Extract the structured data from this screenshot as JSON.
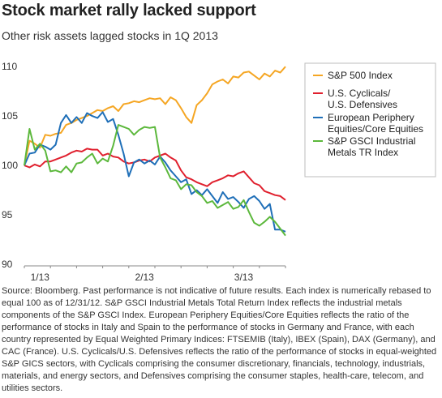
{
  "title": "Stock market rally lacked support",
  "subtitle": "Other risk assets lagged stocks in 1Q 2013",
  "source": "Source: Bloomberg. Past performance is not indicative of future results. Each index is numerically rebased to equal 100 as of 12/31/12. S&P GSCI Industrial Metals Total Return Index reflects the industrial metals components of the S&P GSCI Index. European Periphery Equities/Core Equities reflects the ratio of the performance of stocks in Italy and Spain to the performance of stocks in Germany and France, with each country represented by Equal Weighted Primary Indices: FTSEMIB (Italy), IBEX (Spain), DAX (Germany), and CAC (France). U.S. Cyclicals/U.S. Defensives reflects the ratio of the performance of stocks in equal-weighted S&P GICS sectors, with Cyclicals comprising the consumer discretionary, financials, technology, industrials, materials, and energy sectors, and Defensives comprising the consumer staples, health-care, telecom, and utilities sectors.",
  "chart_data": {
    "type": "line",
    "title": "Stock market rally lacked support",
    "subtitle": "Other risk assets lagged stocks in 1Q 2013",
    "xlabel": "",
    "ylabel": "",
    "x_ticks": [
      "1/13",
      "2/13",
      "3/13"
    ],
    "x_tick_index": [
      3,
      23,
      42
    ],
    "ylim": [
      90,
      111
    ],
    "yticks": [
      90,
      95,
      100,
      105,
      110
    ],
    "grid": false,
    "legend_position": "top-right",
    "series": [
      {
        "name": "S&P 500 Index",
        "color": "#f5a623",
        "values": [
          100,
          102.5,
          102.2,
          101.8,
          103.1,
          103.0,
          103.2,
          103.3,
          104.1,
          104.3,
          104.6,
          104.8,
          105.0,
          105.3,
          105.6,
          105.5,
          105.8,
          106.0,
          105.5,
          106.2,
          106.3,
          106.5,
          106.4,
          106.6,
          106.8,
          106.7,
          106.8,
          106.2,
          106.9,
          106.6,
          105.8,
          104.9,
          104.3,
          106.1,
          106.6,
          107.3,
          108.2,
          108.5,
          108.7,
          108.3,
          109.0,
          108.9,
          109.4,
          109.5,
          109.1,
          108.7,
          109.3,
          109.0,
          109.6,
          109.4,
          110.0
        ]
      },
      {
        "name": "U.S. Cyclicals/ U.S. Defensives",
        "color": "#e0202e",
        "values": [
          100,
          99.8,
          100.1,
          99.9,
          100.4,
          100.4,
          100.6,
          100.8,
          101.0,
          101.3,
          101.5,
          101.4,
          101.7,
          101.6,
          101.6,
          101.0,
          101.2,
          100.9,
          100.8,
          100.4,
          100.2,
          100.3,
          100.5,
          100.6,
          100.4,
          100.8,
          101.0,
          101.2,
          100.8,
          100.5,
          99.5,
          98.8,
          98.6,
          98.3,
          98.1,
          97.9,
          98.3,
          98.5,
          98.7,
          99.0,
          98.9,
          99.2,
          99.4,
          98.8,
          98.2,
          98.0,
          97.4,
          97.2,
          97.0,
          96.9,
          96.5
        ]
      },
      {
        "name": "European Periphery Equities/Core Equities",
        "color": "#1f6fb8",
        "values": [
          100,
          101.2,
          101.3,
          102.1,
          101.9,
          101.6,
          102.1,
          104.3,
          105.1,
          104.3,
          104.9,
          104.3,
          105.3,
          105.0,
          104.8,
          105.4,
          104.4,
          104.7,
          103.1,
          101.2,
          98.9,
          100.3,
          100.6,
          100.2,
          100.5,
          100.1,
          100.9,
          100.3,
          99.5,
          98.9,
          98.3,
          98.6,
          97.1,
          97.5,
          97.0,
          97.6,
          96.9,
          96.2,
          97.3,
          96.6,
          96.8,
          96.3,
          95.7,
          96.6,
          96.9,
          96.4,
          95.6,
          96.1,
          93.5,
          93.5,
          93.3
        ]
      },
      {
        "name": "S&P GSCI Industrial Metals TR Index",
        "color": "#5cb83c",
        "values": [
          100,
          103.7,
          101.6,
          102.2,
          101.5,
          99.4,
          99.5,
          99.3,
          99.9,
          99.3,
          100.2,
          100.3,
          100.8,
          101.2,
          100.2,
          100.7,
          100.4,
          102.0,
          104.1,
          103.9,
          103.7,
          103.1,
          103.6,
          103.9,
          103.8,
          103.9,
          100.8,
          99.8,
          98.7,
          98.5,
          97.6,
          98.1,
          98.0,
          97.3,
          96.9,
          96.2,
          96.4,
          95.7,
          96.0,
          96.3,
          95.6,
          95.8,
          96.5,
          95.3,
          94.2,
          93.9,
          94.3,
          94.8,
          94.3,
          93.6,
          92.9
        ]
      }
    ]
  }
}
